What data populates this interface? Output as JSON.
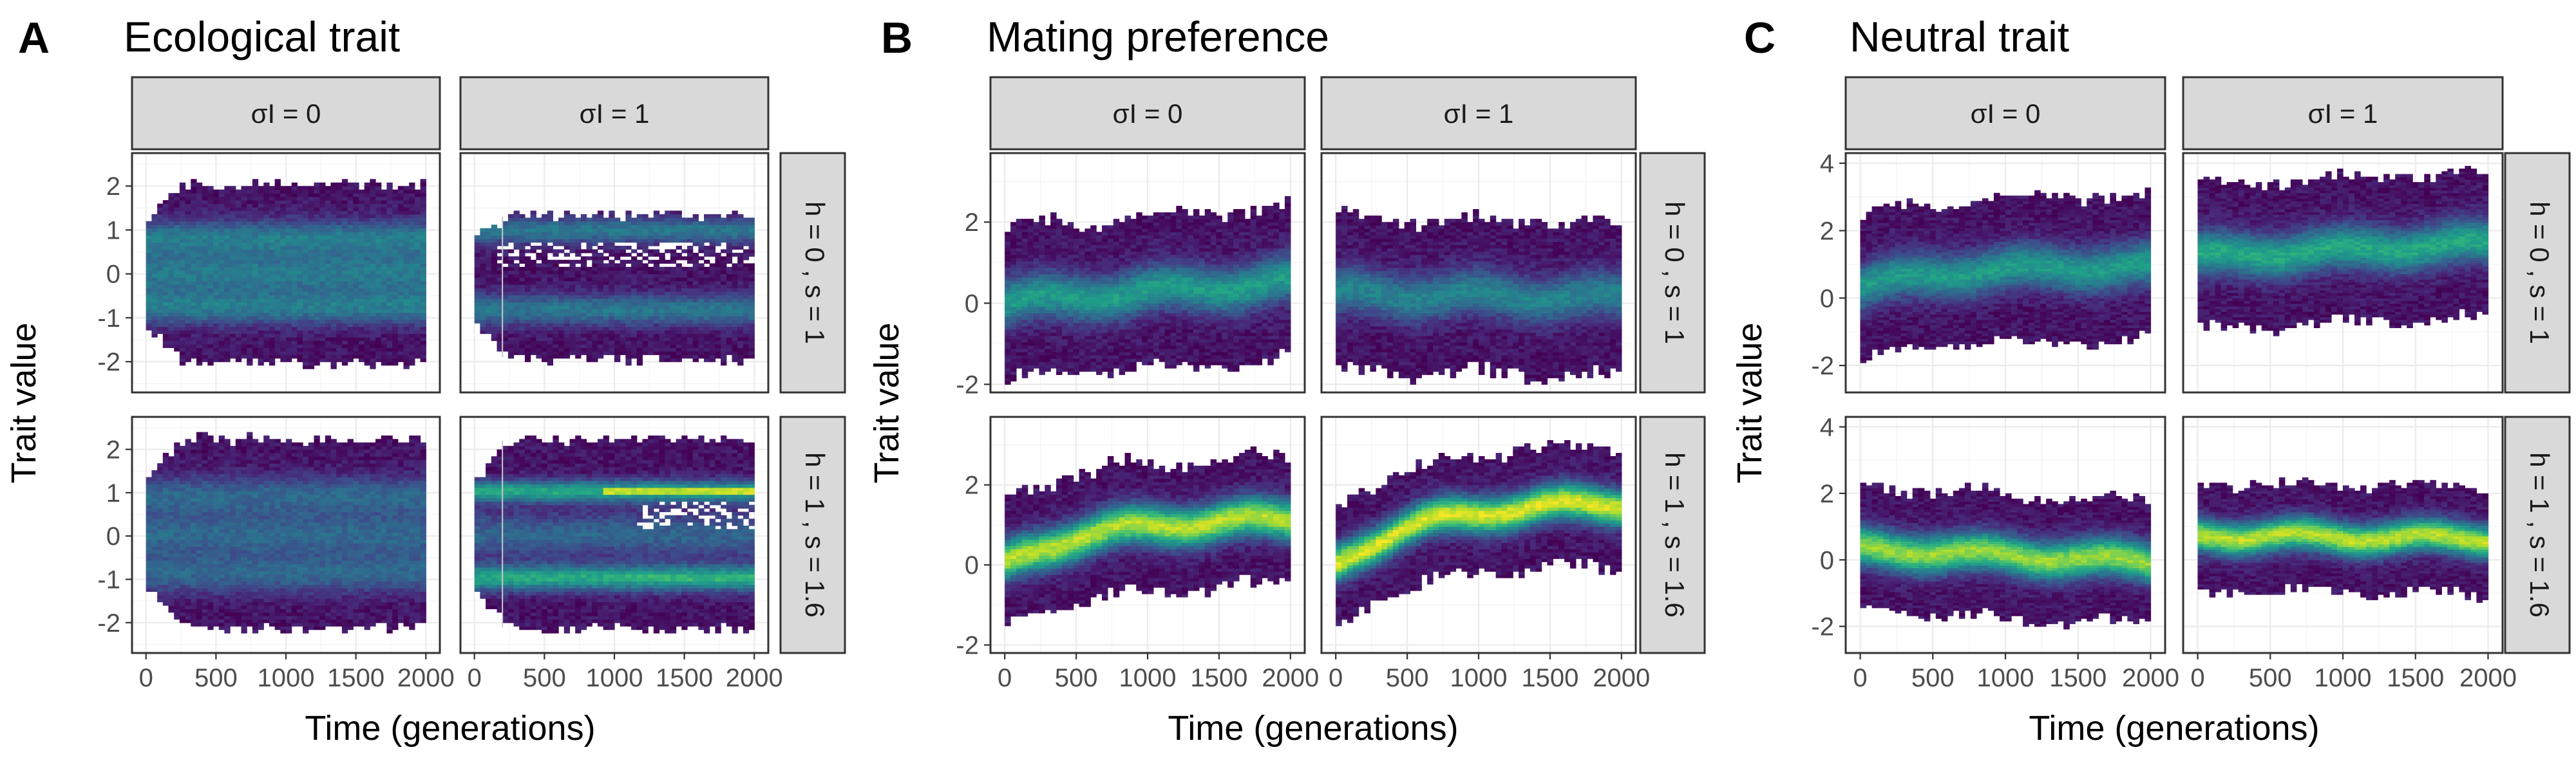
{
  "chart_data": [
    {
      "type": "heatmap",
      "letter": "A",
      "title": "Ecological trait",
      "xlabel": "Time (generations)",
      "ylabel": "Trait value",
      "x_ticks": [
        0,
        500,
        1000,
        1500,
        2000
      ],
      "y_ticks": [
        -2,
        -1,
        0,
        1,
        2
      ],
      "ylim": [
        -2.7,
        2.75
      ],
      "facet_cols": [
        "σI = 0",
        "σI = 1"
      ],
      "facet_rows": [
        "h = 0 ,  s = 1",
        "h = 1 ,  s = 1.6"
      ],
      "panels": [
        {
          "row": 0,
          "col": 0,
          "ymin": -2.0,
          "ymax": 2.0,
          "centers": [
            -0.8,
            0.0,
            0.8
          ],
          "widths": [
            0.4,
            0.5,
            0.4
          ],
          "peak": 0.35
        },
        {
          "row": 0,
          "col": 1,
          "ymin": -1.9,
          "ymax": 1.3,
          "centers": [
            -0.85,
            0.95
          ],
          "widths": [
            0.35,
            0.3
          ],
          "peak": 0.35
        },
        {
          "row": 1,
          "col": 0,
          "ymin": -2.1,
          "ymax": 2.2,
          "centers": [
            -0.9,
            0.0,
            0.9
          ],
          "widths": [
            0.45,
            0.5,
            0.45
          ],
          "peak": 0.4
        },
        {
          "row": 1,
          "col": 1,
          "ymin": -2.1,
          "ymax": 2.2,
          "centers": [
            -1.0,
            0.0,
            1.0
          ],
          "widths": [
            0.3,
            0.5,
            0.25
          ],
          "peak": 0.55
        }
      ]
    },
    {
      "type": "heatmap",
      "letter": "B",
      "title": "Mating preference",
      "xlabel": "Time (generations)",
      "ylabel": "Trait value",
      "x_ticks": [
        0,
        500,
        1000,
        1500,
        2000
      ],
      "y_ticks": [
        -2,
        0,
        2
      ],
      "ylim": [
        -2.2,
        3.7
      ],
      "facet_cols": [
        "σI = 0",
        "σI = 1"
      ],
      "facet_rows": [
        "h = 0 ,  s = 1",
        "h = 1 ,  s = 1.6"
      ],
      "panels": [
        {
          "row": 0,
          "col": 0,
          "mean_start": 0.0,
          "mean_end": 0.5,
          "sd": 0.7,
          "peak": 0.5
        },
        {
          "row": 0,
          "col": 1,
          "mean_start": 0.2,
          "mean_end": 0.1,
          "sd": 0.7,
          "peak": 0.4
        },
        {
          "row": 1,
          "col": 0,
          "mean_start": 0.0,
          "mean_end": 1.1,
          "sd": 0.6,
          "peak": 0.85
        },
        {
          "row": 1,
          "col": 1,
          "mean_start": 0.0,
          "mean_end": 1.5,
          "sd": 0.55,
          "peak": 0.9
        }
      ]
    },
    {
      "type": "heatmap",
      "letter": "C",
      "title": "Neutral trait",
      "xlabel": "Time (generations)",
      "ylabel": "Trait value",
      "x_ticks": [
        0,
        500,
        1000,
        1500,
        2000
      ],
      "y_ticks": [
        -2,
        0,
        2,
        4
      ],
      "ylim": [
        -2.8,
        4.3
      ],
      "facet_cols": [
        "σI = 0",
        "σI = 1"
      ],
      "facet_rows": [
        "h = 0 ,  s = 1",
        "h = 1 ,  s = 1.6"
      ],
      "panels": [
        {
          "row": 0,
          "col": 0,
          "mean_start": 0.3,
          "mean_end": 0.9,
          "sd": 0.8,
          "peak": 0.5
        },
        {
          "row": 0,
          "col": 1,
          "mean_start": 1.2,
          "mean_end": 1.6,
          "sd": 0.8,
          "peak": 0.55
        },
        {
          "row": 1,
          "col": 0,
          "mean_start": 0.3,
          "mean_end": -0.1,
          "sd": 0.7,
          "peak": 0.8
        },
        {
          "row": 1,
          "col": 1,
          "mean_start": 0.7,
          "mean_end": 0.6,
          "sd": 0.6,
          "peak": 0.85
        }
      ]
    }
  ]
}
